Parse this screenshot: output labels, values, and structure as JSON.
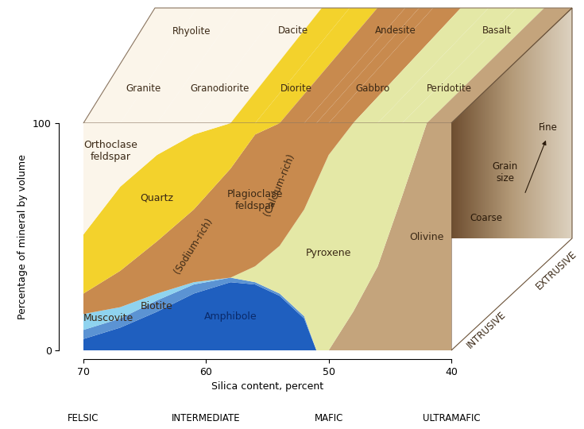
{
  "chart_data": {
    "type": "stacked_area",
    "x": [
      70,
      67,
      64,
      61,
      58,
      56,
      54,
      52,
      51,
      50,
      48,
      46,
      44,
      42,
      40
    ],
    "xlim": [
      70,
      40
    ],
    "xticks": [
      70,
      60,
      50,
      40
    ],
    "ylim": [
      0,
      100
    ],
    "yticks": [
      0,
      100
    ],
    "xlabel": "Silica content, percent",
    "ylabel": "Percentage of mineral by volume",
    "series": [
      {
        "name": "Olivine",
        "color": "#c4a47c",
        "values": [
          0,
          0,
          0,
          0,
          0,
          0,
          0,
          0,
          0,
          0,
          17,
          37,
          68,
          100,
          100
        ]
      },
      {
        "name": "Amphibole",
        "color": "#1f5fbf",
        "values": [
          5,
          10,
          17,
          25,
          30,
          29,
          24,
          14,
          0,
          0,
          0,
          0,
          0,
          0,
          0
        ]
      },
      {
        "name": "Biotite",
        "color": "#5b93d3",
        "values": [
          4,
          4,
          5,
          4,
          2,
          1,
          1,
          1,
          0,
          0,
          0,
          0,
          0,
          0,
          0
        ]
      },
      {
        "name": "Muscovite",
        "color": "#8fd3ef",
        "values": [
          7,
          5,
          3,
          1,
          0,
          0,
          0,
          0,
          0,
          0,
          0,
          0,
          0,
          0,
          0
        ]
      },
      {
        "name": "Pyroxene",
        "color": "#e4e8a6",
        "values": [
          0,
          0,
          0,
          0,
          0,
          7,
          21,
          47,
          74,
          86,
          83,
          63,
          32,
          0,
          0
        ]
      },
      {
        "name": "Plagioclase\nfeldspar",
        "color": "#c88a4e",
        "values": [
          9,
          16,
          23,
          32,
          48,
          58,
          54,
          38,
          26,
          14,
          0,
          0,
          0,
          0,
          0
        ]
      },
      {
        "name": "Quartz",
        "color": "#f3d22c",
        "values": [
          26,
          37,
          38,
          33,
          20,
          5,
          0,
          0,
          0,
          0,
          0,
          0,
          0,
          0,
          0
        ]
      },
      {
        "name": "Orthoclase\nfeldspar",
        "color": "#fbf5ea",
        "values": [
          49,
          28,
          14,
          5,
          0,
          0,
          0,
          0,
          0,
          0,
          0,
          0,
          0,
          0,
          0
        ]
      }
    ],
    "annotations": [
      "(Sodium-rich)",
      "(Calcium-rich)"
    ],
    "silica_classes": [
      "FELSIC",
      "INTERMEDIATE",
      "MAFIC",
      "ULTRAMAFIC"
    ],
    "intrusive_rocks": [
      "Granite",
      "Granodiorite",
      "Diorite",
      "Gabbro",
      "Peridotite"
    ],
    "extrusive_rocks": [
      "Rhyolite",
      "Dacite",
      "Andesite",
      "Basalt"
    ],
    "texture_labels": {
      "intrusive": "INTRUSIVE",
      "extrusive": "EXTRUSIVE"
    },
    "grain_size": {
      "title": "Grain\nsize",
      "fine": "Fine",
      "coarse": "Coarse"
    }
  }
}
